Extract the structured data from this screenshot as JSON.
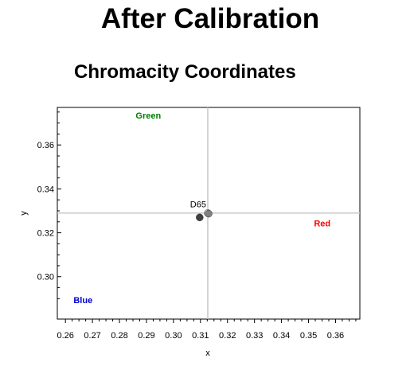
{
  "page": {
    "title": "After Calibration",
    "subtitle": "Chromacity Coordinates"
  },
  "chart_data": {
    "type": "scatter",
    "title": "Chromacity Coordinates",
    "xlabel": "x",
    "ylabel": "y",
    "xlim": [
      0.257,
      0.369
    ],
    "ylim": [
      0.2807,
      0.3771
    ],
    "x_ticks": [
      0.26,
      0.27,
      0.28,
      0.29,
      0.3,
      0.31,
      0.32,
      0.33,
      0.34,
      0.35,
      0.36
    ],
    "x_tick_labels": [
      "0.26",
      "0.27",
      "0.28",
      "0.29",
      "0.30",
      "0.31",
      "0.32",
      "0.33",
      "0.34",
      "0.35",
      "0.36"
    ],
    "y_ticks": [
      0.3,
      0.32,
      0.34,
      0.36
    ],
    "y_tick_labels": [
      "0.30",
      "0.32",
      "0.34",
      "0.36"
    ],
    "reference_lines": {
      "x": 0.3127,
      "y": 0.329
    },
    "corner_labels": [
      {
        "text": "Green",
        "x": 0.286,
        "y": 0.372,
        "color": "#008000"
      },
      {
        "text": "Red",
        "x": 0.352,
        "y": 0.323,
        "color": "#ff0000"
      },
      {
        "text": "Blue",
        "x": 0.263,
        "y": 0.288,
        "color": "#0000cc"
      }
    ],
    "reference_point": {
      "label": "D65",
      "x": 0.3127,
      "y": 0.329
    },
    "points": [
      {
        "x": 0.3127,
        "y": 0.329,
        "color": "#e2e2e2"
      },
      {
        "x": 0.313,
        "y": 0.3287,
        "color": "#808080"
      },
      {
        "x": 0.3097,
        "y": 0.327,
        "color": "#404040"
      }
    ],
    "grid": false
  }
}
